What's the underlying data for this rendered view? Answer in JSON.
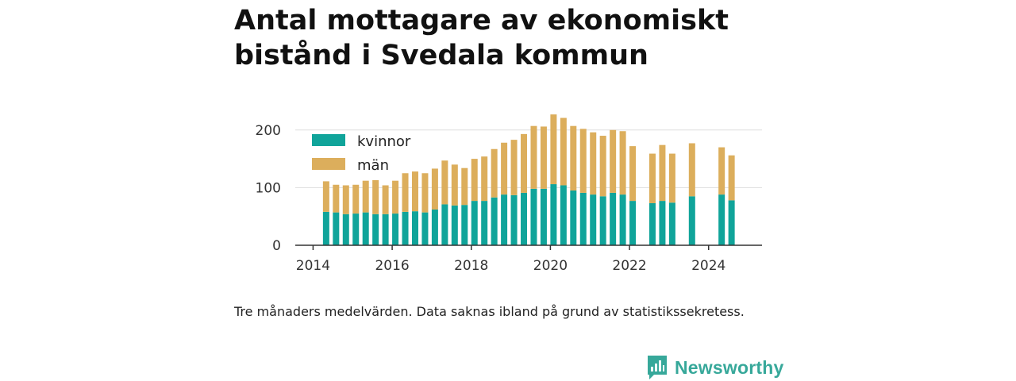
{
  "header": {
    "title": "Antal mottagare av ekonomiskt bistånd i Svedala kommun"
  },
  "caption": "Tre månaders medelvärden. Data saknas ibland på grund av statistikssekretess.",
  "brand": {
    "name": "Newsworthy",
    "icon": "newsworthy-logo-icon"
  },
  "colors": {
    "kvinnor": "#10a49a",
    "man": "#dcae5c",
    "grid": "#dddddd",
    "axis": "#333333"
  },
  "chart_data": {
    "type": "bar",
    "stacked": true,
    "xlim": [
      2013.55,
      2025.35
    ],
    "ylim": [
      0,
      230
    ],
    "x_ticks": [
      2014,
      2016,
      2018,
      2020,
      2022,
      2024
    ],
    "y_ticks": [
      0,
      100,
      200
    ],
    "grid": true,
    "legend_position": "top-left",
    "series": [
      {
        "name": "kvinnor",
        "points": [
          [
            2014.33,
            58
          ],
          [
            2014.58,
            57
          ],
          [
            2014.83,
            54
          ],
          [
            2015.08,
            55
          ],
          [
            2015.33,
            57
          ],
          [
            2015.58,
            54
          ],
          [
            2015.83,
            54
          ],
          [
            2016.08,
            55
          ],
          [
            2016.33,
            58
          ],
          [
            2016.58,
            59
          ],
          [
            2016.83,
            57
          ],
          [
            2017.08,
            62
          ],
          [
            2017.33,
            71
          ],
          [
            2017.58,
            69
          ],
          [
            2017.83,
            70
          ],
          [
            2018.08,
            77
          ],
          [
            2018.33,
            77
          ],
          [
            2018.58,
            83
          ],
          [
            2018.83,
            88
          ],
          [
            2019.08,
            87
          ],
          [
            2019.33,
            91
          ],
          [
            2019.58,
            98
          ],
          [
            2019.83,
            98
          ],
          [
            2020.08,
            106
          ],
          [
            2020.33,
            104
          ],
          [
            2020.58,
            95
          ],
          [
            2020.83,
            91
          ],
          [
            2021.08,
            88
          ],
          [
            2021.33,
            85
          ],
          [
            2021.58,
            91
          ],
          [
            2021.83,
            88
          ],
          [
            2022.08,
            77
          ],
          [
            2022.58,
            73
          ],
          [
            2022.83,
            77
          ],
          [
            2023.08,
            74
          ],
          [
            2023.58,
            85
          ],
          [
            2024.33,
            88
          ],
          [
            2024.58,
            78
          ]
        ]
      },
      {
        "name": "män",
        "points": [
          [
            2014.33,
            53
          ],
          [
            2014.58,
            48
          ],
          [
            2014.83,
            50
          ],
          [
            2015.08,
            50
          ],
          [
            2015.33,
            55
          ],
          [
            2015.58,
            59
          ],
          [
            2015.83,
            50
          ],
          [
            2016.08,
            57
          ],
          [
            2016.33,
            67
          ],
          [
            2016.58,
            69
          ],
          [
            2016.83,
            68
          ],
          [
            2017.08,
            71
          ],
          [
            2017.33,
            76
          ],
          [
            2017.58,
            71
          ],
          [
            2017.83,
            64
          ],
          [
            2018.08,
            73
          ],
          [
            2018.33,
            77
          ],
          [
            2018.58,
            84
          ],
          [
            2018.83,
            90
          ],
          [
            2019.08,
            96
          ],
          [
            2019.33,
            102
          ],
          [
            2019.58,
            109
          ],
          [
            2019.83,
            108
          ],
          [
            2020.08,
            121
          ],
          [
            2020.33,
            117
          ],
          [
            2020.58,
            112
          ],
          [
            2020.83,
            111
          ],
          [
            2021.08,
            108
          ],
          [
            2021.33,
            105
          ],
          [
            2021.58,
            109
          ],
          [
            2021.83,
            110
          ],
          [
            2022.08,
            95
          ],
          [
            2022.58,
            86
          ],
          [
            2022.83,
            97
          ],
          [
            2023.08,
            85
          ],
          [
            2023.58,
            92
          ],
          [
            2024.33,
            82
          ],
          [
            2024.58,
            78
          ]
        ]
      }
    ]
  }
}
